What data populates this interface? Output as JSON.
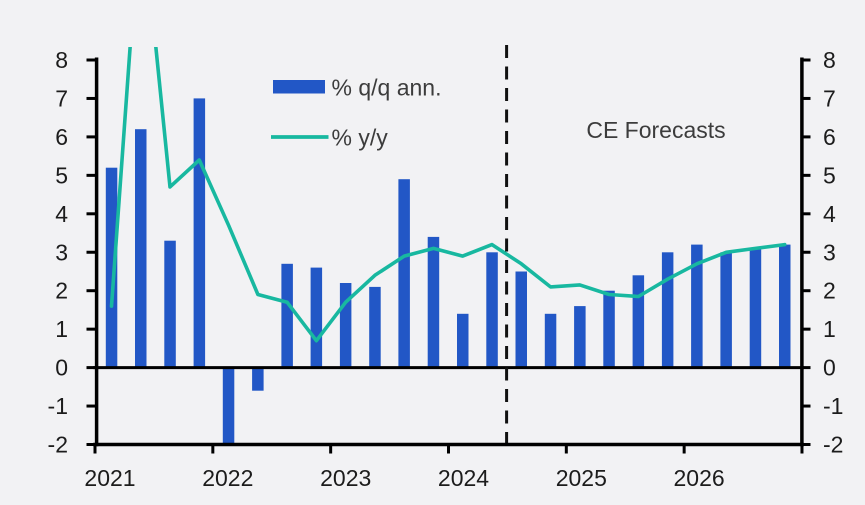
{
  "chart_data": {
    "type": "bar+line",
    "title": "",
    "categories": [
      "2021 Q1",
      "2021 Q2",
      "2021 Q3",
      "2021 Q4",
      "2022 Q1",
      "2022 Q2",
      "2022 Q3",
      "2022 Q4",
      "2023 Q1",
      "2023 Q2",
      "2023 Q3",
      "2023 Q4",
      "2024 Q1",
      "2024 Q2",
      "2024 Q3",
      "2024 Q4",
      "2025 Q1",
      "2025 Q2",
      "2025 Q3",
      "2025 Q4",
      "2026 Q1",
      "2026 Q2",
      "2026 Q3",
      "2026 Q4"
    ],
    "series": [
      {
        "name": "% q/q ann.",
        "type": "bar",
        "color": "#2257c6",
        "values": [
          5.2,
          6.2,
          3.3,
          7.0,
          -2.0,
          -0.6,
          2.7,
          2.6,
          2.2,
          2.1,
          4.9,
          3.4,
          1.4,
          3.0,
          2.5,
          1.4,
          1.6,
          2.0,
          2.4,
          3.0,
          3.2,
          3.0,
          3.1,
          3.2
        ]
      },
      {
        "name": "% y/y",
        "type": "line",
        "color": "#18b8a0",
        "values": [
          1.6,
          12.2,
          4.7,
          5.4,
          3.7,
          1.9,
          1.7,
          0.7,
          1.7,
          2.4,
          2.9,
          3.1,
          2.9,
          3.2,
          2.7,
          2.1,
          2.15,
          1.9,
          1.85,
          2.3,
          2.7,
          3.0,
          3.1,
          3.2
        ]
      }
    ],
    "x_tick_labels": [
      "2021",
      "2022",
      "2023",
      "2024",
      "2025",
      "2026"
    ],
    "y_ticks": [
      8,
      7,
      6,
      5,
      4,
      3,
      2,
      1,
      0,
      -1,
      -2
    ],
    "ylim": [
      -2,
      8
    ],
    "y_axis_sides": "both",
    "grid": "off",
    "forecast": {
      "label": "CE Forecasts",
      "divider_before_index": 14,
      "divider_style": "dashed"
    },
    "legend_position": "top-left-inside"
  },
  "legend": {
    "bar_label": "% q/q ann.",
    "line_label": "% y/y"
  },
  "annotations": {
    "forecast_label": "CE Forecasts"
  },
  "colors": {
    "background": "#f2f2f4",
    "bar": "#2257c6",
    "line": "#18b8a0",
    "axis": "#000000",
    "tick_label": "#1c1c1c",
    "annotation_text": "#3c3c3c"
  }
}
